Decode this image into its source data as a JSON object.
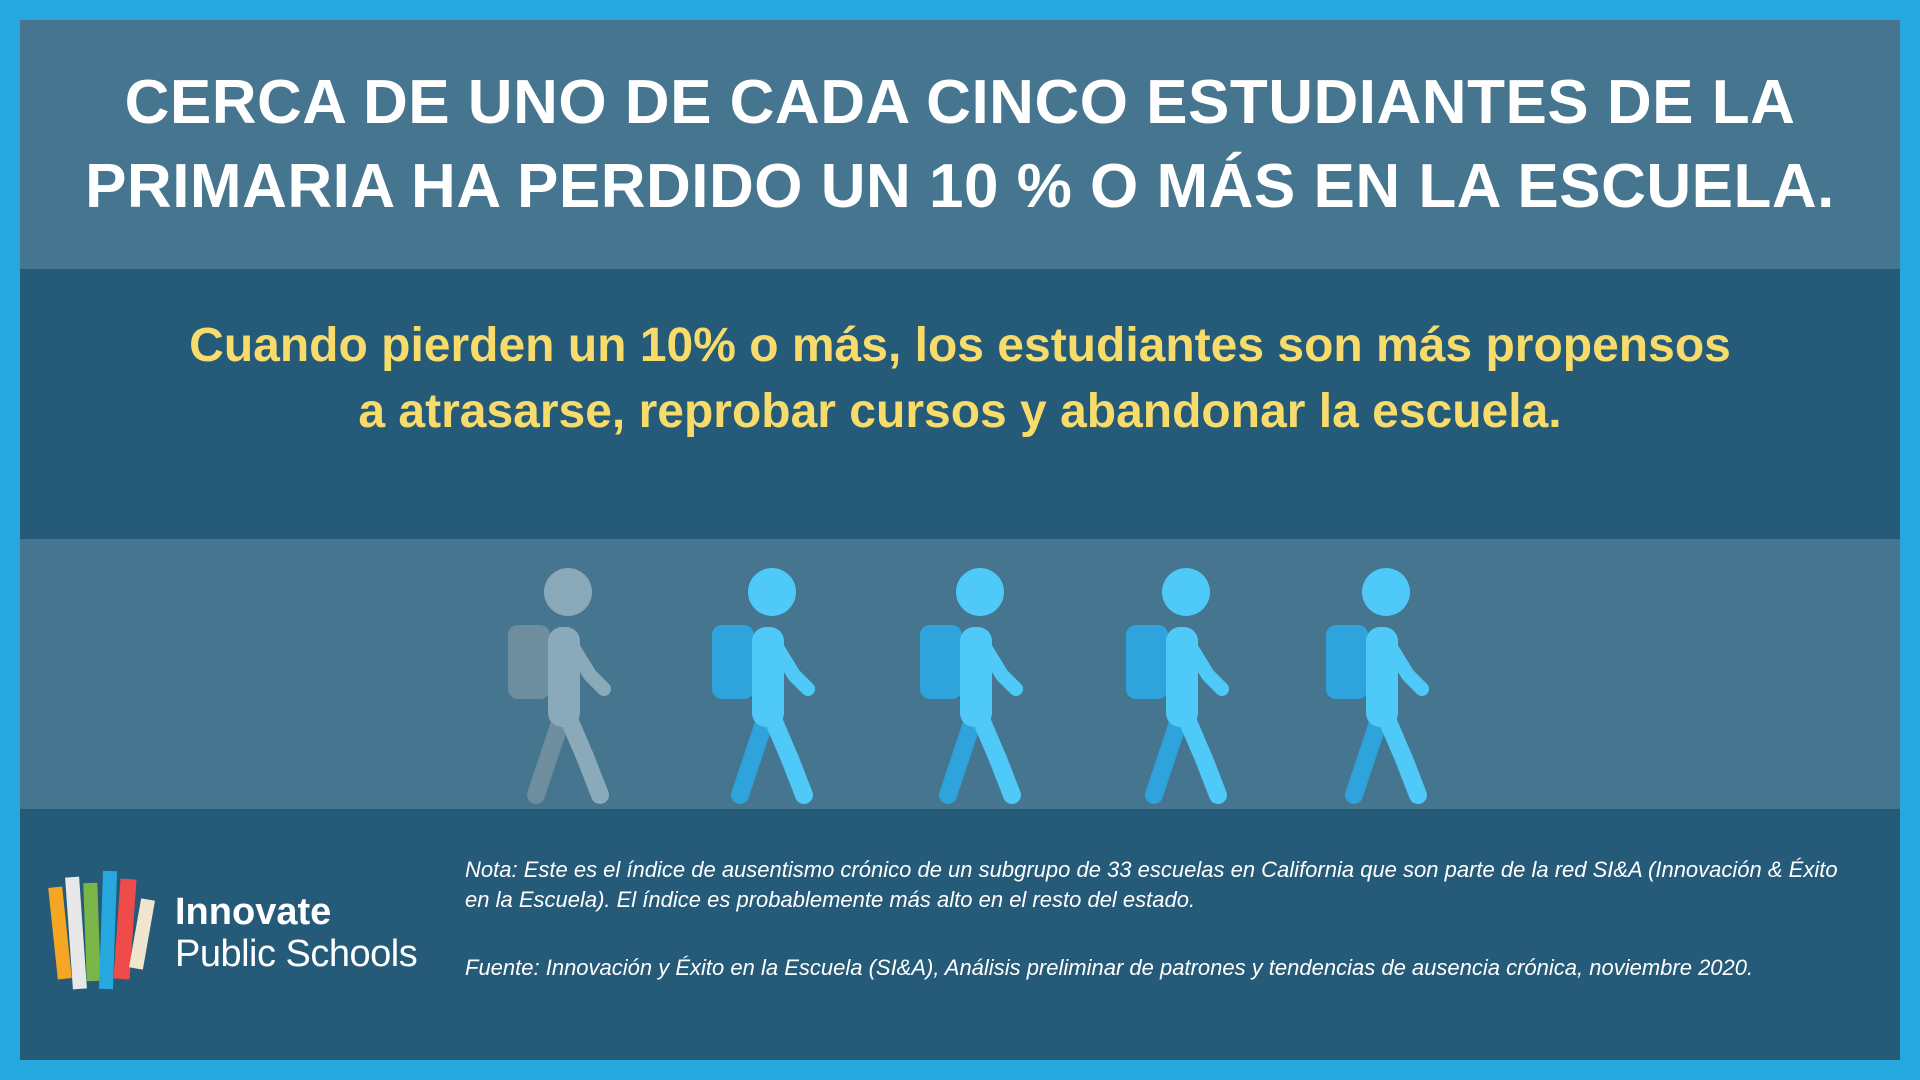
{
  "headline": {
    "line1": "CERCA DE UNO DE CADA CINCO ESTUDIANTES DE LA",
    "line2": "PRIMARIA HA PERDIDO UN 10 % O MÁS EN LA ESCUELA."
  },
  "subhead": {
    "line1": "Cuando pierden un 10% o más, los estudiantes son más propensos",
    "line2": "a atrasarse, reprobar cursos y abandonar la escuela."
  },
  "pictogram": {
    "total": 5,
    "highlighted": 1,
    "highlight_color": "#8aa9b9",
    "default_color": "#4fc9f7",
    "default_dark_color": "#2ea3dc",
    "highlight_dark_color": "#6e8e9e",
    "icon": "walking-student-icon"
  },
  "logo": {
    "name": "Innovate",
    "sub": "Public Schools"
  },
  "notes": {
    "nota": "Nota: Este es el índice de ausentismo crónico de un subgrupo de 33 escuelas en California que son parte de la red SI&A (Innovación & Éxito en la Escuela). El índice es probablemente más alto en el resto del estado.",
    "fuente": "Fuente: Innovación y Éxito en la Escuela (SI&A), Análisis preliminar de patrones y tendencias de ausencia crónica, noviembre 2020."
  },
  "colors": {
    "border": "#26a8de",
    "dark_band": "#255b79",
    "light_band": "#45758f",
    "subhead_text": "#f7dc6b"
  }
}
